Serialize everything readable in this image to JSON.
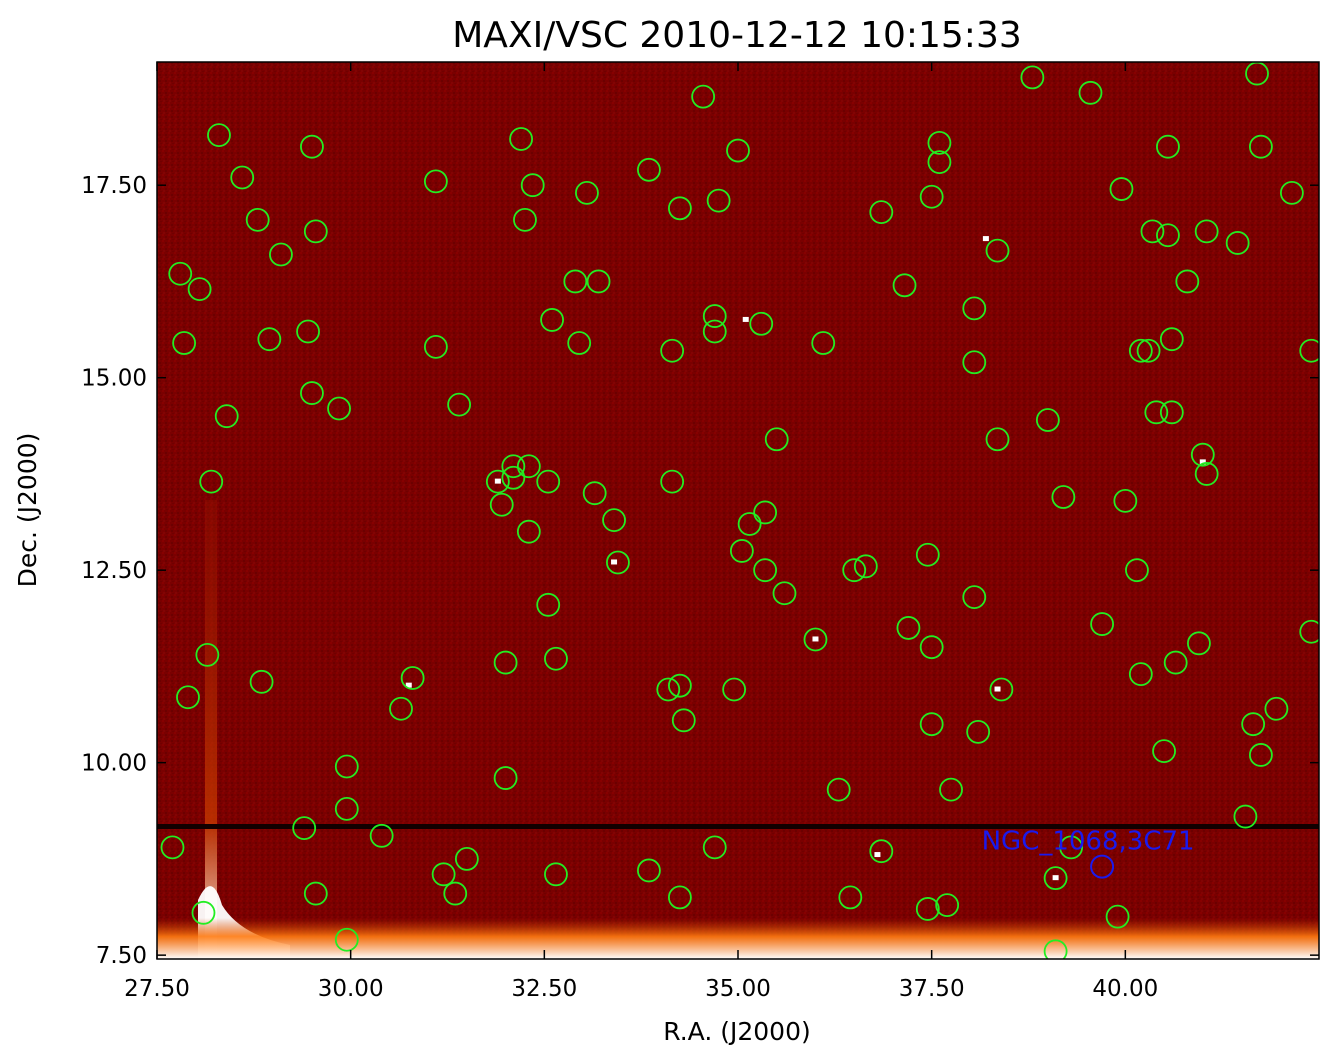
{
  "chart_data": {
    "type": "scatter",
    "title": "MAXI/VSC 2010-12-12 10:15:33",
    "xlabel": "R.A. (J2000)",
    "ylabel": "Dec. (J2000)",
    "xlim": [
      27.5,
      42.5
    ],
    "ylim": [
      7.45,
      19.1
    ],
    "x_ticks": [
      27.5,
      30.0,
      32.5,
      35.0,
      37.5,
      40.0
    ],
    "x_tick_labels": [
      "27.50",
      "30.00",
      "32.50",
      "35.00",
      "37.50",
      "40.00"
    ],
    "y_ticks": [
      7.5,
      10.0,
      12.5,
      15.0,
      17.5
    ],
    "y_tick_labels": [
      "7.50",
      "10.00",
      "12.50",
      "15.00",
      "17.50"
    ],
    "grid": false,
    "background_color": "#7a0000",
    "colors": {
      "source_circle": "#22ee22",
      "target": "#1a1aee",
      "stripe": "#120000",
      "bright_edge": "#ffffff"
    },
    "target": {
      "label": "NGC_1068,3C71",
      "ra": 39.7,
      "dec": 8.65
    },
    "bright_pixels": [
      {
        "ra": 31.9,
        "dec": 13.65
      },
      {
        "ra": 33.4,
        "dec": 12.6
      },
      {
        "ra": 35.1,
        "dec": 15.75
      },
      {
        "ra": 38.35,
        "dec": 10.95
      },
      {
        "ra": 39.1,
        "dec": 8.5
      },
      {
        "ra": 41.0,
        "dec": 13.9
      },
      {
        "ra": 36.0,
        "dec": 11.6
      },
      {
        "ra": 30.75,
        "dec": 11.0
      },
      {
        "ra": 36.8,
        "dec": 8.8
      },
      {
        "ra": 38.2,
        "dec": 16.8
      }
    ],
    "sources": [
      {
        "ra": 28.3,
        "dec": 18.15
      },
      {
        "ra": 29.5,
        "dec": 18.0
      },
      {
        "ra": 28.6,
        "dec": 17.6
      },
      {
        "ra": 28.8,
        "dec": 17.05
      },
      {
        "ra": 29.1,
        "dec": 16.6
      },
      {
        "ra": 29.55,
        "dec": 16.9
      },
      {
        "ra": 27.8,
        "dec": 16.35
      },
      {
        "ra": 28.05,
        "dec": 16.15
      },
      {
        "ra": 27.85,
        "dec": 15.45
      },
      {
        "ra": 28.95,
        "dec": 15.5
      },
      {
        "ra": 29.45,
        "dec": 15.6
      },
      {
        "ra": 29.5,
        "dec": 14.8
      },
      {
        "ra": 29.85,
        "dec": 14.6
      },
      {
        "ra": 28.4,
        "dec": 14.5
      },
      {
        "ra": 28.2,
        "dec": 13.65
      },
      {
        "ra": 28.15,
        "dec": 11.4
      },
      {
        "ra": 27.9,
        "dec": 10.85
      },
      {
        "ra": 28.85,
        "dec": 11.05
      },
      {
        "ra": 27.7,
        "dec": 8.9
      },
      {
        "ra": 28.1,
        "dec": 8.05
      },
      {
        "ra": 29.4,
        "dec": 9.15
      },
      {
        "ra": 29.55,
        "dec": 8.3
      },
      {
        "ra": 29.95,
        "dec": 9.95
      },
      {
        "ra": 29.95,
        "dec": 9.4
      },
      {
        "ra": 29.95,
        "dec": 7.7
      },
      {
        "ra": 30.4,
        "dec": 9.05
      },
      {
        "ra": 30.65,
        "dec": 10.7
      },
      {
        "ra": 30.8,
        "dec": 11.1
      },
      {
        "ra": 31.2,
        "dec": 8.55
      },
      {
        "ra": 31.35,
        "dec": 8.3
      },
      {
        "ra": 31.5,
        "dec": 8.75
      },
      {
        "ra": 31.1,
        "dec": 17.55
      },
      {
        "ra": 31.1,
        "dec": 15.4
      },
      {
        "ra": 31.4,
        "dec": 14.65
      },
      {
        "ra": 32.2,
        "dec": 18.1
      },
      {
        "ra": 32.35,
        "dec": 17.5
      },
      {
        "ra": 32.25,
        "dec": 17.05
      },
      {
        "ra": 32.9,
        "dec": 16.25
      },
      {
        "ra": 33.2,
        "dec": 16.25
      },
      {
        "ra": 33.05,
        "dec": 17.4
      },
      {
        "ra": 32.6,
        "dec": 15.75
      },
      {
        "ra": 32.95,
        "dec": 15.45
      },
      {
        "ra": 31.9,
        "dec": 13.65
      },
      {
        "ra": 31.95,
        "dec": 13.35
      },
      {
        "ra": 32.1,
        "dec": 13.85
      },
      {
        "ra": 32.1,
        "dec": 13.7
      },
      {
        "ra": 32.3,
        "dec": 13.85
      },
      {
        "ra": 32.55,
        "dec": 13.65
      },
      {
        "ra": 32.3,
        "dec": 13.0
      },
      {
        "ra": 33.15,
        "dec": 13.5
      },
      {
        "ra": 33.4,
        "dec": 13.15
      },
      {
        "ra": 33.45,
        "dec": 12.6
      },
      {
        "ra": 32.55,
        "dec": 12.05
      },
      {
        "ra": 32.65,
        "dec": 11.35
      },
      {
        "ra": 32.0,
        "dec": 11.3
      },
      {
        "ra": 32.0,
        "dec": 9.8
      },
      {
        "ra": 32.65,
        "dec": 8.55
      },
      {
        "ra": 33.85,
        "dec": 8.6
      },
      {
        "ra": 34.25,
        "dec": 8.25
      },
      {
        "ra": 34.7,
        "dec": 8.9
      },
      {
        "ra": 33.85,
        "dec": 17.7
      },
      {
        "ra": 34.25,
        "dec": 17.2
      },
      {
        "ra": 34.55,
        "dec": 18.65
      },
      {
        "ra": 34.75,
        "dec": 17.3
      },
      {
        "ra": 35.0,
        "dec": 17.95
      },
      {
        "ra": 34.15,
        "dec": 15.35
      },
      {
        "ra": 34.7,
        "dec": 15.8
      },
      {
        "ra": 34.7,
        "dec": 15.6
      },
      {
        "ra": 34.15,
        "dec": 13.65
      },
      {
        "ra": 34.1,
        "dec": 10.95
      },
      {
        "ra": 34.25,
        "dec": 11.0
      },
      {
        "ra": 34.3,
        "dec": 10.55
      },
      {
        "ra": 34.95,
        "dec": 10.95
      },
      {
        "ra": 35.05,
        "dec": 12.75
      },
      {
        "ra": 35.15,
        "dec": 13.1
      },
      {
        "ra": 35.3,
        "dec": 15.7
      },
      {
        "ra": 35.35,
        "dec": 13.25
      },
      {
        "ra": 35.35,
        "dec": 12.5
      },
      {
        "ra": 35.5,
        "dec": 14.2
      },
      {
        "ra": 35.6,
        "dec": 12.2
      },
      {
        "ra": 36.0,
        "dec": 11.6
      },
      {
        "ra": 36.1,
        "dec": 15.45
      },
      {
        "ra": 36.3,
        "dec": 9.65
      },
      {
        "ra": 36.45,
        "dec": 8.25
      },
      {
        "ra": 36.5,
        "dec": 12.5
      },
      {
        "ra": 36.65,
        "dec": 12.55
      },
      {
        "ra": 36.85,
        "dec": 17.15
      },
      {
        "ra": 36.85,
        "dec": 8.85
      },
      {
        "ra": 37.15,
        "dec": 16.2
      },
      {
        "ra": 37.2,
        "dec": 11.75
      },
      {
        "ra": 37.45,
        "dec": 12.7
      },
      {
        "ra": 37.5,
        "dec": 11.5
      },
      {
        "ra": 37.5,
        "dec": 10.5
      },
      {
        "ra": 37.5,
        "dec": 17.35
      },
      {
        "ra": 37.6,
        "dec": 18.05
      },
      {
        "ra": 37.6,
        "dec": 17.8
      },
      {
        "ra": 37.45,
        "dec": 8.1
      },
      {
        "ra": 37.7,
        "dec": 8.15
      },
      {
        "ra": 37.75,
        "dec": 9.65
      },
      {
        "ra": 38.05,
        "dec": 15.9
      },
      {
        "ra": 38.05,
        "dec": 15.2
      },
      {
        "ra": 38.05,
        "dec": 12.15
      },
      {
        "ra": 38.1,
        "dec": 10.4
      },
      {
        "ra": 38.35,
        "dec": 16.65
      },
      {
        "ra": 38.35,
        "dec": 14.2
      },
      {
        "ra": 38.4,
        "dec": 10.95
      },
      {
        "ra": 38.8,
        "dec": 18.9
      },
      {
        "ra": 39.0,
        "dec": 14.45
      },
      {
        "ra": 39.1,
        "dec": 8.5
      },
      {
        "ra": 39.1,
        "dec": 7.55
      },
      {
        "ra": 39.2,
        "dec": 13.45
      },
      {
        "ra": 39.3,
        "dec": 8.9
      },
      {
        "ra": 39.55,
        "dec": 18.7
      },
      {
        "ra": 39.7,
        "dec": 11.8
      },
      {
        "ra": 39.9,
        "dec": 8.0
      },
      {
        "ra": 39.95,
        "dec": 17.45
      },
      {
        "ra": 40.0,
        "dec": 13.4
      },
      {
        "ra": 40.15,
        "dec": 12.5
      },
      {
        "ra": 40.2,
        "dec": 11.15
      },
      {
        "ra": 40.2,
        "dec": 15.35
      },
      {
        "ra": 40.3,
        "dec": 15.35
      },
      {
        "ra": 40.35,
        "dec": 16.9
      },
      {
        "ra": 40.4,
        "dec": 14.55
      },
      {
        "ra": 40.5,
        "dec": 10.15
      },
      {
        "ra": 40.55,
        "dec": 18.0
      },
      {
        "ra": 40.55,
        "dec": 16.85
      },
      {
        "ra": 40.6,
        "dec": 15.5
      },
      {
        "ra": 40.6,
        "dec": 14.55
      },
      {
        "ra": 40.65,
        "dec": 11.3
      },
      {
        "ra": 40.8,
        "dec": 16.25
      },
      {
        "ra": 40.95,
        "dec": 11.55
      },
      {
        "ra": 41.0,
        "dec": 14.0
      },
      {
        "ra": 41.05,
        "dec": 13.75
      },
      {
        "ra": 41.05,
        "dec": 16.9
      },
      {
        "ra": 41.45,
        "dec": 16.75
      },
      {
        "ra": 41.55,
        "dec": 9.3
      },
      {
        "ra": 41.65,
        "dec": 10.5
      },
      {
        "ra": 41.7,
        "dec": 18.95
      },
      {
        "ra": 41.75,
        "dec": 18.0
      },
      {
        "ra": 41.75,
        "dec": 10.1
      },
      {
        "ra": 41.95,
        "dec": 10.7
      },
      {
        "ra": 42.15,
        "dec": 17.4
      },
      {
        "ra": 42.4,
        "dec": 15.35
      },
      {
        "ra": 42.4,
        "dec": 11.7
      }
    ]
  }
}
